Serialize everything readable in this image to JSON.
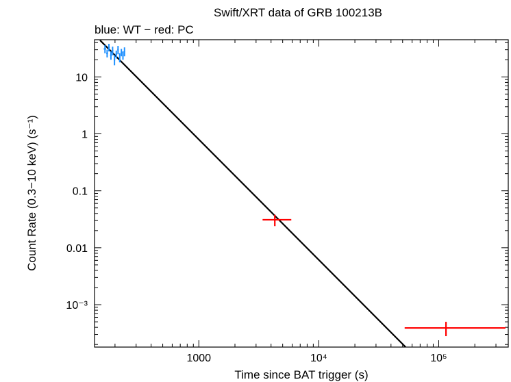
{
  "chart_data": {
    "type": "scatter",
    "title": "Swift/XRT data of GRB 100213B",
    "subtitle": "blue: WT − red: PC",
    "xlabel": "Time since BAT trigger (s)",
    "ylabel": "Count Rate (0.3−10 keV) (s⁻¹)",
    "xscale": "log",
    "yscale": "log",
    "xlim": [
      135,
      380000
    ],
    "ylim": [
      0.00018,
      45
    ],
    "x_ticks": [
      {
        "value": 1000,
        "label": "1000"
      },
      {
        "value": 10000,
        "label": "10⁴"
      },
      {
        "value": 100000,
        "label": "10⁵"
      }
    ],
    "y_ticks": [
      {
        "value": 10,
        "label": "10"
      },
      {
        "value": 1,
        "label": "1"
      },
      {
        "value": 0.1,
        "label": "0.1"
      },
      {
        "value": 0.01,
        "label": "0.01"
      },
      {
        "value": 0.001,
        "label": "10⁻³"
      }
    ],
    "series": [
      {
        "name": "WT",
        "color": "#1e90ff",
        "points": [
          {
            "x": 165,
            "y": 31,
            "xerr": [
              4,
              4
            ],
            "yerr": [
              5,
              5
            ]
          },
          {
            "x": 172,
            "y": 26,
            "xerr": [
              3,
              3
            ],
            "yerr": [
              4,
              4
            ]
          },
          {
            "x": 178,
            "y": 33,
            "xerr": [
              3,
              3
            ],
            "yerr": [
              5,
              5
            ]
          },
          {
            "x": 185,
            "y": 24,
            "xerr": [
              3,
              3
            ],
            "yerr": [
              4,
              4
            ]
          },
          {
            "x": 191,
            "y": 29,
            "xerr": [
              3,
              3
            ],
            "yerr": [
              5,
              5
            ]
          },
          {
            "x": 198,
            "y": 20,
            "xerr": [
              3,
              3
            ],
            "yerr": [
              4,
              4
            ]
          },
          {
            "x": 205,
            "y": 25,
            "xerr": [
              3,
              3
            ],
            "yerr": [
              4,
              4
            ]
          },
          {
            "x": 212,
            "y": 30,
            "xerr": [
              3,
              3
            ],
            "yerr": [
              5,
              5
            ]
          },
          {
            "x": 219,
            "y": 22,
            "xerr": [
              3,
              3
            ],
            "yerr": [
              4,
              4
            ]
          },
          {
            "x": 226,
            "y": 27,
            "xerr": [
              3,
              3
            ],
            "yerr": [
              4,
              4
            ]
          },
          {
            "x": 233,
            "y": 24,
            "xerr": [
              3,
              3
            ],
            "yerr": [
              4,
              4
            ]
          },
          {
            "x": 240,
            "y": 28,
            "xerr": [
              3,
              3
            ],
            "yerr": [
              5,
              5
            ]
          }
        ]
      },
      {
        "name": "PC",
        "color": "#ff0000",
        "points": [
          {
            "x": 4300,
            "y": 0.031,
            "xerr": [
              900,
              1600
            ],
            "yerr": [
              0.007,
              0.007
            ]
          },
          {
            "x": 115000,
            "y": 0.00039,
            "xerr": [
              63000,
              245000
            ],
            "yerr": [
              0.00011,
              0.00011
            ]
          }
        ]
      }
    ],
    "model": {
      "name": "power-law fit",
      "color": "#000000",
      "points": [
        {
          "x": 150,
          "y": 44
        },
        {
          "x": 53000,
          "y": 0.00018
        }
      ]
    }
  }
}
